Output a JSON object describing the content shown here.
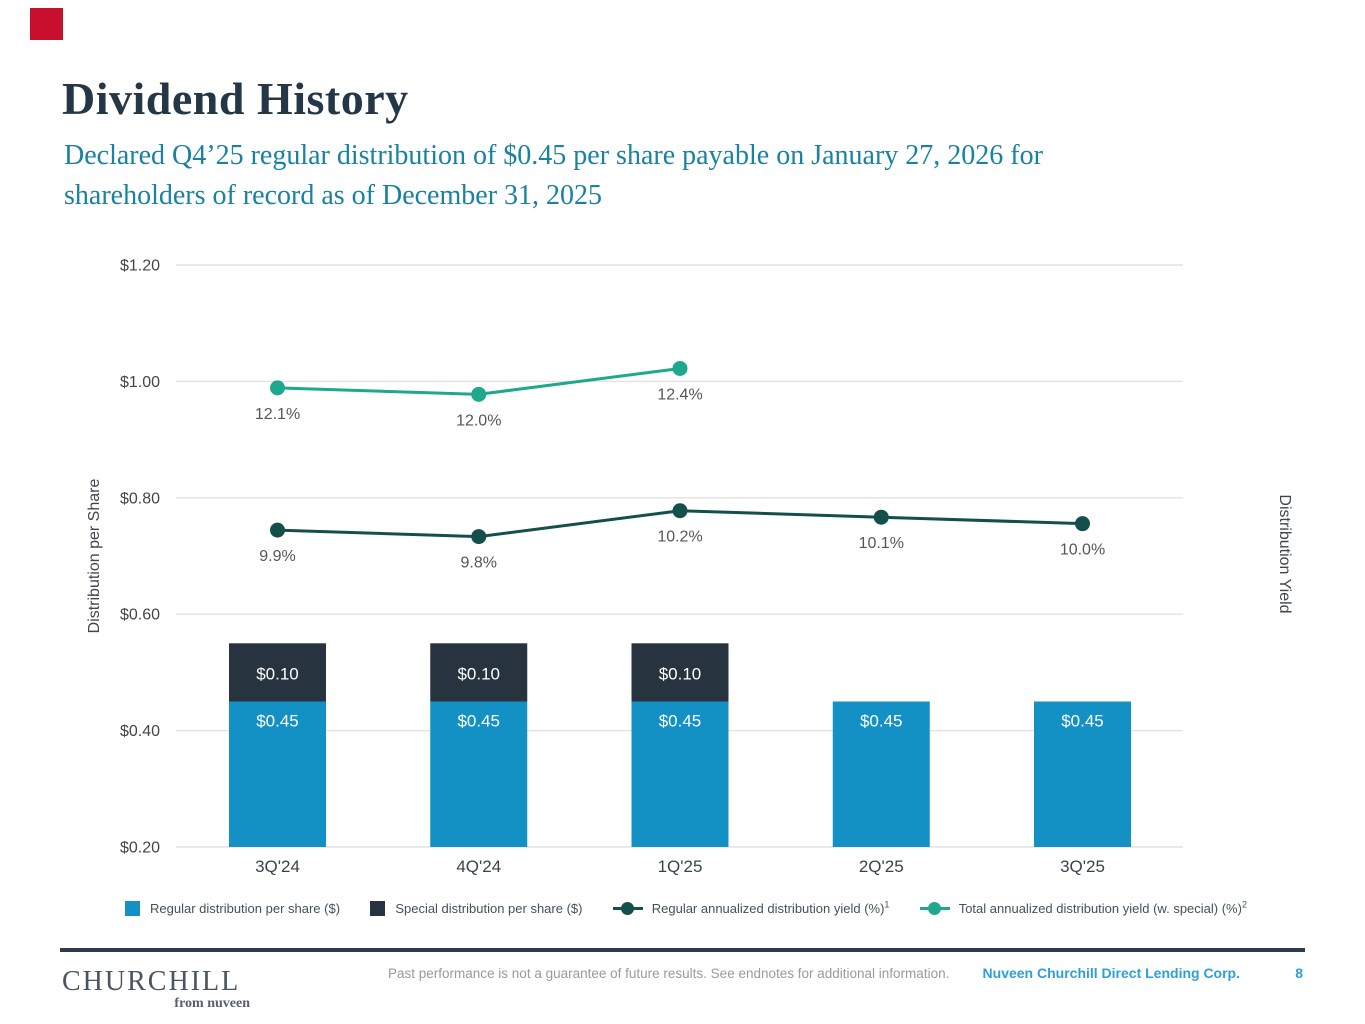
{
  "colors": {
    "brand_red": "#C8102E",
    "title_navy": "#253746",
    "subtitle_teal": "#1981A1",
    "bar_regular": "#1391C4",
    "bar_special": "#27343F",
    "line_regular": "#134F4B",
    "line_total": "#1EA98C",
    "gridline": "#E2E2E2",
    "tick_text": "#454545",
    "axis_title_text": "#3F464D",
    "x_label_text": "#39434D",
    "point_label_text": "#55565A",
    "bar_label_text": "#FFFFFF",
    "legend_text": "#44515C",
    "footer_rule": "#2D3C48",
    "footer_blue": "#2E9FD8",
    "disclaimer_gray": "#9A9A9A"
  },
  "header": {
    "title": "Dividend History",
    "subtitle_lines": [
      "Declared Q4’25 regular distribution of $0.45 per share payable on January 27, 2026 for",
      "shareholders of record as of December 31, 2025"
    ]
  },
  "chart_data": {
    "type": "combo",
    "categories": [
      "3Q'24",
      "4Q'24",
      "1Q'25",
      "2Q'25",
      "3Q'25"
    ],
    "left_axis": {
      "title": "Distribution per Share",
      "min": 0.2,
      "max": 1.2,
      "ticks": [
        {
          "label": "$1.20",
          "value": 1.2
        },
        {
          "label": "$1.00",
          "value": 1.0
        },
        {
          "label": "$0.80",
          "value": 0.8
        },
        {
          "label": "$0.60",
          "value": 0.6
        },
        {
          "label": "$0.40",
          "value": 0.4
        },
        {
          "label": "$0.20",
          "value": 0.2
        }
      ]
    },
    "right_axis": {
      "title": "Distribution Yield",
      "min": 5,
      "max": 14,
      "ticks": []
    },
    "grid": true,
    "legend_position": "bottom",
    "series": [
      {
        "id": "regular_dist",
        "name": "Regular distribution per share ($)",
        "type": "bar",
        "color_key": "bar_regular",
        "values": [
          0.45,
          0.45,
          0.45,
          0.45,
          0.45
        ],
        "labels": [
          "$0.45",
          "$0.45",
          "$0.45",
          "$0.45",
          "$0.45"
        ]
      },
      {
        "id": "special_dist",
        "name": "Special distribution per share ($)",
        "type": "bar",
        "stacked_on": "regular_dist",
        "color_key": "bar_special",
        "values": [
          0.1,
          0.1,
          0.1,
          null,
          null
        ],
        "labels": [
          "$0.10",
          "$0.10",
          "$0.10",
          null,
          null
        ]
      },
      {
        "id": "regular_yield",
        "name": "Regular annualized distribution yield (%)",
        "type": "line",
        "axis": "right",
        "color_key": "line_regular",
        "values": [
          9.9,
          9.8,
          10.2,
          10.1,
          10.0
        ],
        "labels": [
          "9.9%",
          "9.8%",
          "10.2%",
          "10.1%",
          "10.0%"
        ]
      },
      {
        "id": "total_yield",
        "name": "Total annualized distribution yield (w. special) (%)",
        "type": "line",
        "axis": "right",
        "color_key": "line_total",
        "values": [
          12.1,
          12.0,
          12.4,
          null,
          null
        ],
        "labels": [
          "12.1%",
          "12.0%",
          "12.4%",
          null,
          null
        ]
      }
    ]
  },
  "legend": {
    "items": [
      {
        "marker": "square",
        "color_key": "bar_regular",
        "label": "Regular distribution per share ($)",
        "sup": ""
      },
      {
        "marker": "square",
        "color_key": "bar_special",
        "label": "Special distribution per share ($)",
        "sup": ""
      },
      {
        "marker": "line",
        "color_key": "line_regular",
        "label": "Regular annualized distribution yield (%)",
        "sup": "1"
      },
      {
        "marker": "line",
        "color_key": "line_total",
        "label": "Total annualized distribution yield (w. special) (%)",
        "sup": "2"
      }
    ]
  },
  "footer": {
    "logo_main": "CHURCHILL",
    "logo_sub": "from nuveen",
    "disclaimer": "Past performance is not a guarantee of future results. See endnotes for additional information.",
    "company": "Nuveen Churchill Direct Lending Corp.",
    "page_number": "8"
  }
}
